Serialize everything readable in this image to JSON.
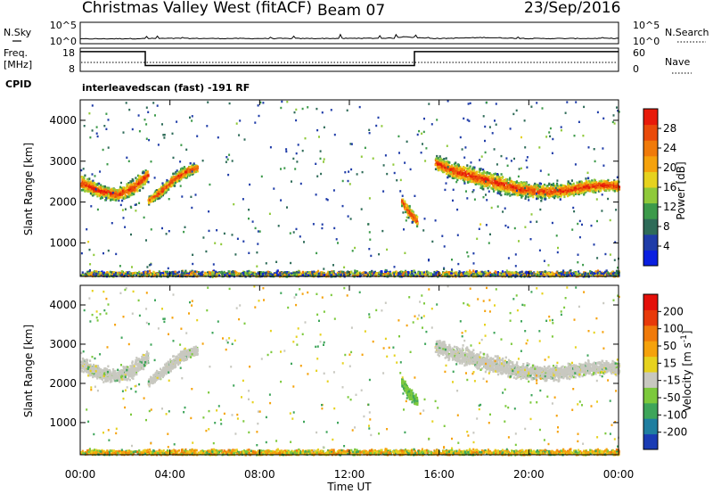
{
  "header": {
    "title": "Christmas Valley West (fitACF)",
    "beam": "Beam 07",
    "date": "23/Sep/2016"
  },
  "strip_labels": {
    "nsky": "N.Sky",
    "nsearch": "N.Search",
    "freq_line1": "Freq.",
    "freq_line2": "[MHz]",
    "nave": "Nave",
    "cpid": "CPID",
    "cpid_text": "interleavedscan (fast) -191 RF"
  },
  "strip_ticks": {
    "nsky_left": [
      "10^5",
      "10^0"
    ],
    "nsky_right": [
      "10^5",
      "10^0"
    ],
    "freq_left": [
      "18",
      "8"
    ],
    "nave_right": [
      "60",
      "0"
    ]
  },
  "chart_data": [
    {
      "type": "line",
      "name": "noise",
      "ylabel_left": "N.Sky",
      "ylabel_right": "N.Search",
      "x": [
        0,
        2,
        4,
        6,
        8,
        10,
        12,
        14,
        14.5,
        15,
        16,
        18,
        20,
        22,
        24
      ],
      "y": [
        1.2,
        1.4,
        1.6,
        1.5,
        1.5,
        1.5,
        1.6,
        1.8,
        3.0,
        2.0,
        1.5,
        2.2,
        1.5,
        1.5,
        1.6
      ]
    },
    {
      "type": "line",
      "name": "frequency",
      "ylabel": "Freq. [MHz]",
      "ylim": [
        8,
        18
      ],
      "x": [
        0,
        2.9,
        2.9,
        14.9,
        14.9,
        24
      ],
      "y": [
        16.5,
        16.5,
        10.5,
        10.5,
        16.5,
        16.5
      ],
      "nave_level": 24
    },
    {
      "type": "heatmap",
      "name": "power",
      "xlabel": "Time UT",
      "ylabel": "Slant Range [km]",
      "xlim": [
        0,
        24
      ],
      "ylim": [
        180,
        4500
      ],
      "x_ticks": [
        "00:00",
        "04:00",
        "08:00",
        "12:00",
        "16:00",
        "20:00",
        "00:00"
      ],
      "y_ticks": [
        1000,
        2000,
        3000,
        4000
      ],
      "colorbar_label": "Power [dB]",
      "colorbar_ticks": [
        4,
        8,
        12,
        16,
        20,
        24,
        28
      ],
      "colorbar_colors": [
        "#0a1fe0",
        "#1f3ca8",
        "#2e6b58",
        "#3c9a4a",
        "#8fc93a",
        "#e6d21e",
        "#f5a20c",
        "#f07a0a",
        "#ea4a0a",
        "#e81a0a"
      ],
      "bands": [
        {
          "t": [
            0.0,
            0.8,
            1.6,
            2.4,
            3.0
          ],
          "center": [
            2500,
            2300,
            2200,
            2400,
            2700
          ],
          "width": [
            450,
            400,
            350,
            450,
            400
          ]
        },
        {
          "t": [
            3.0,
            3.6,
            4.2,
            4.8,
            5.2
          ],
          "center": [
            2050,
            2300,
            2600,
            2800,
            2850
          ],
          "width": [
            200,
            300,
            350,
            300,
            250
          ]
        },
        {
          "t": [
            14.3,
            14.6,
            15.0
          ],
          "center": [
            2050,
            1800,
            1550
          ],
          "width": [
            300,
            350,
            300
          ]
        },
        {
          "t": [
            15.8,
            16.5,
            17.5,
            18.5,
            19.5,
            20.5,
            21.5,
            22.5,
            23.5,
            24.0
          ],
          "center": [
            3000,
            2800,
            2650,
            2500,
            2350,
            2280,
            2300,
            2400,
            2450,
            2400
          ],
          "width": [
            400,
            450,
            500,
            500,
            450,
            400,
            400,
            400,
            350,
            350
          ]
        },
        {
          "t": [
            0.0,
            24.0
          ],
          "center": [
            260,
            260
          ],
          "width": [
            180,
            180
          ]
        }
      ]
    },
    {
      "type": "heatmap",
      "name": "velocity",
      "xlabel": "Time UT",
      "ylabel": "Slant Range [km]",
      "xlim": [
        0,
        24
      ],
      "ylim": [
        180,
        4500
      ],
      "x_ticks": [
        "00:00",
        "04:00",
        "08:00",
        "12:00",
        "16:00",
        "20:00",
        "00:00"
      ],
      "y_ticks": [
        1000,
        2000,
        3000,
        4000
      ],
      "colorbar_label": "Velocity [m s^-1]",
      "colorbar_ticks": [
        200,
        100,
        50,
        15,
        -15,
        -50,
        -100,
        -200
      ],
      "colorbar_colors": [
        "#1a3cb4",
        "#1f7ea0",
        "#3ea55a",
        "#7cc93c",
        "#c8c8c0",
        "#e6d21e",
        "#f5a20c",
        "#f07a0a",
        "#e83a0a",
        "#e4100a"
      ]
    }
  ]
}
